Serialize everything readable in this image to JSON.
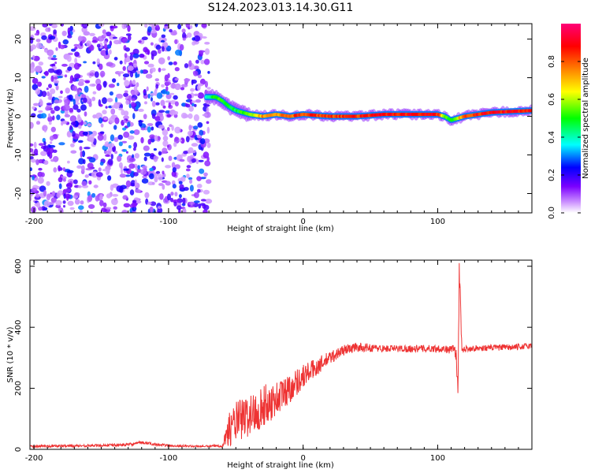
{
  "title": "S124.2023.013.14.30.G11",
  "chart_data": [
    {
      "type": "heatmap",
      "xlabel": "Height of straight line (km)",
      "ylabel": "Frequency (Hz)",
      "xlim": [
        -203,
        170
      ],
      "ylim": [
        -25,
        24
      ],
      "x_ticks": [
        -200,
        -100,
        0,
        100
      ],
      "y_ticks": [
        -20,
        -10,
        0,
        10,
        20
      ],
      "colorbar": {
        "label": "Normalized spectral amplitude",
        "range": [
          0.0,
          1.0
        ],
        "ticks": [
          0.0,
          0.2,
          0.4,
          0.6,
          0.8
        ],
        "colors": [
          "#ffffff",
          "#c98cff",
          "#7a00ff",
          "#0000ff",
          "#00ffff",
          "#00ff00",
          "#ffff00",
          "#ff8000",
          "#ff0000",
          "#ff00aa"
        ]
      },
      "noise_region_x": [
        -203,
        -70
      ],
      "ridge": {
        "x": [
          -72,
          -65,
          -60,
          -55,
          -50,
          -45,
          -40,
          -30,
          -20,
          -10,
          0,
          20,
          40,
          60,
          80,
          100,
          105,
          110,
          120,
          140,
          170
        ],
        "freq": [
          5,
          5,
          4,
          2.5,
          1.5,
          1,
          0.5,
          0,
          0.5,
          0,
          0.5,
          0,
          0,
          0.5,
          0.5,
          0.5,
          0,
          -1,
          0,
          1,
          1.5
        ],
        "amplitude": [
          0.4,
          0.55,
          0.55,
          0.5,
          0.5,
          0.55,
          0.6,
          0.8,
          0.8,
          0.85,
          0.9,
          0.9,
          0.9,
          0.95,
          0.95,
          0.95,
          0.6,
          0.5,
          0.9,
          0.95,
          0.95
        ]
      }
    },
    {
      "type": "line",
      "xlabel": "Height of straight line (km)",
      "ylabel": "SNR (10 * v/v)",
      "xlim": [
        -203,
        170
      ],
      "ylim": [
        0,
        620
      ],
      "x_ticks": [
        -200,
        -100,
        0,
        100
      ],
      "y_ticks": [
        0,
        200,
        400,
        600
      ],
      "color": "#ee3333",
      "series": [
        {
          "x": [
            -203,
            -160,
            -130,
            -120,
            -100,
            -80,
            -70,
            -60,
            -56,
            -50,
            -40,
            -30,
            -20,
            -10,
            0,
            10,
            20,
            30,
            40,
            60,
            80,
            100,
            105,
            108,
            110,
            112,
            114,
            115,
            116,
            118,
            120,
            140,
            160,
            170
          ],
          "values": [
            10,
            12,
            15,
            22,
            12,
            10,
            10,
            12,
            60,
            90,
            110,
            140,
            165,
            200,
            240,
            270,
            300,
            325,
            335,
            330,
            330,
            330,
            330,
            325,
            330,
            330,
            300,
            160,
            600,
            320,
            330,
            333,
            335,
            340
          ],
          "noise": [
            4,
            4,
            5,
            5,
            4,
            3,
            3,
            5,
            50,
            70,
            70,
            70,
            60,
            50,
            40,
            30,
            22,
            18,
            15,
            12,
            12,
            12,
            12,
            12,
            12,
            12,
            40,
            80,
            40,
            12,
            10,
            10,
            10,
            10
          ]
        }
      ]
    }
  ]
}
